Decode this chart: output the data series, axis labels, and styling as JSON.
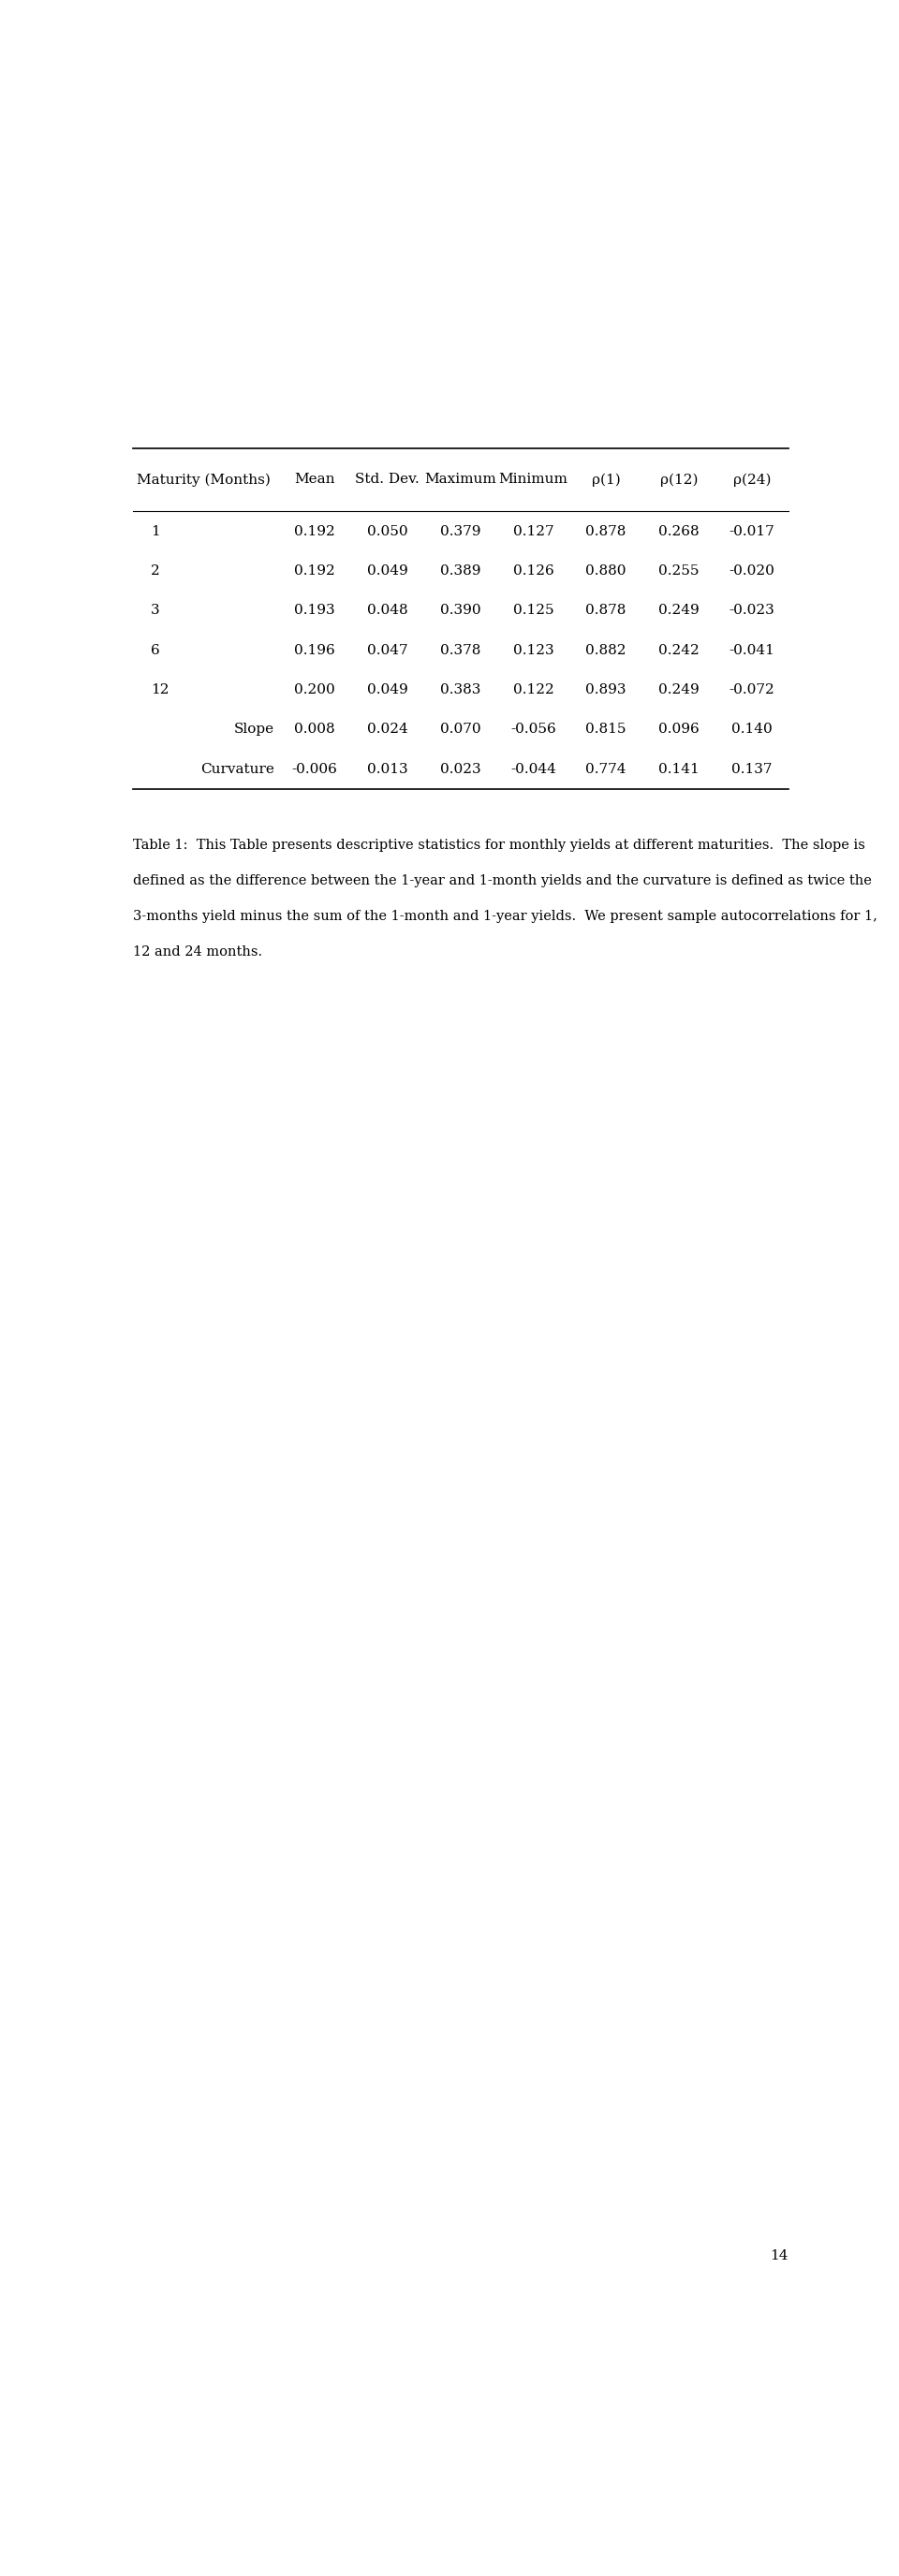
{
  "headers": [
    "Maturity (Months)",
    "Mean",
    "Std. Dev.",
    "Maximum",
    "Minimum",
    "ρ(1)",
    "ρ(12)",
    "ρ(24)"
  ],
  "rows": [
    [
      "1",
      "0.192",
      "0.050",
      "0.379",
      "0.127",
      "0.878",
      "0.268",
      "-0.017"
    ],
    [
      "2",
      "0.192",
      "0.049",
      "0.389",
      "0.126",
      "0.880",
      "0.255",
      "-0.020"
    ],
    [
      "3",
      "0.193",
      "0.048",
      "0.390",
      "0.125",
      "0.878",
      "0.249",
      "-0.023"
    ],
    [
      "6",
      "0.196",
      "0.047",
      "0.378",
      "0.123",
      "0.882",
      "0.242",
      "-0.041"
    ],
    [
      "12",
      "0.200",
      "0.049",
      "0.383",
      "0.122",
      "0.893",
      "0.249",
      "-0.072"
    ],
    [
      "Slope",
      "0.008",
      "0.024",
      "0.070",
      "-0.056",
      "0.815",
      "0.096",
      "0.140"
    ],
    [
      "Curvature",
      "-0.006",
      "0.013",
      "0.023",
      "-0.044",
      "0.774",
      "0.141",
      "0.137"
    ]
  ],
  "caption_lines": [
    "Table 1:  This Table presents descriptive statistics for monthly yields at different maturities.  The slope is",
    "defined as the difference between the 1-year and 1-month yields and the curvature is defined as twice the",
    "3-months yield minus the sum of the 1-month and 1-year yields.  We present sample autocorrelations for 1,",
    "12 and 24 months."
  ],
  "page_number": "14",
  "background_color": "#ffffff",
  "text_color": "#000000",
  "font_size": 11,
  "caption_font_size": 10.5
}
